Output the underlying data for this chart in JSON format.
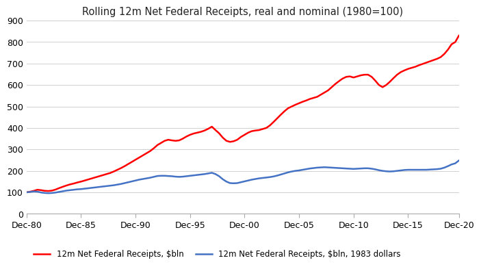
{
  "title": "Rolling 12m Net Federal Receipts, real and nominal (1980=100)",
  "ylim": [
    0,
    900
  ],
  "yticks": [
    0,
    100,
    200,
    300,
    400,
    500,
    600,
    700,
    800,
    900
  ],
  "xtick_labels": [
    "Dec-80",
    "Dec-85",
    "Dec-90",
    "Dec-95",
    "Dec-00",
    "Dec-05",
    "Dec-10",
    "Dec-15",
    "Dec-20"
  ],
  "nominal_color": "#ff0000",
  "real_color": "#4472c4",
  "nominal_label": "12m Net Federal Receipts, $bln",
  "real_label": "12m Net Federal Receipts, $bln, 1983 dollars",
  "background_color": "#ffffff",
  "grid_color": "#d0d0d0",
  "nominal_values": [
    100,
    103,
    107,
    112,
    110,
    107,
    106,
    108,
    113,
    120,
    126,
    132,
    137,
    141,
    146,
    150,
    155,
    160,
    165,
    170,
    175,
    180,
    185,
    190,
    197,
    205,
    213,
    222,
    232,
    242,
    252,
    262,
    272,
    282,
    292,
    305,
    320,
    330,
    340,
    345,
    342,
    340,
    342,
    350,
    360,
    368,
    374,
    378,
    382,
    388,
    396,
    406,
    390,
    375,
    355,
    340,
    335,
    338,
    345,
    358,
    368,
    378,
    385,
    388,
    390,
    395,
    400,
    412,
    428,
    445,
    462,
    478,
    492,
    500,
    508,
    515,
    522,
    528,
    535,
    540,
    545,
    555,
    565,
    575,
    590,
    605,
    618,
    630,
    638,
    640,
    635,
    640,
    645,
    648,
    648,
    638,
    620,
    600,
    590,
    600,
    615,
    632,
    648,
    660,
    668,
    675,
    680,
    685,
    692,
    698,
    704,
    710,
    716,
    722,
    730,
    745,
    765,
    790,
    800,
    830
  ],
  "real_values": [
    100,
    102,
    104,
    103,
    99,
    97,
    96,
    97,
    99,
    102,
    105,
    108,
    110,
    112,
    114,
    115,
    117,
    119,
    121,
    123,
    125,
    127,
    129,
    131,
    133,
    136,
    139,
    143,
    147,
    151,
    155,
    159,
    162,
    165,
    168,
    172,
    176,
    177,
    177,
    176,
    175,
    173,
    172,
    173,
    175,
    177,
    179,
    181,
    183,
    185,
    188,
    191,
    185,
    175,
    161,
    150,
    143,
    142,
    143,
    147,
    151,
    155,
    159,
    162,
    165,
    167,
    169,
    171,
    174,
    178,
    183,
    188,
    193,
    197,
    200,
    202,
    205,
    208,
    211,
    213,
    215,
    216,
    217,
    216,
    215,
    214,
    213,
    212,
    211,
    210,
    209,
    210,
    211,
    212,
    212,
    210,
    207,
    203,
    200,
    198,
    197,
    198,
    200,
    202,
    204,
    205,
    205,
    205,
    205,
    205,
    205,
    206,
    207,
    208,
    210,
    215,
    222,
    230,
    235,
    248
  ],
  "n_points": 120
}
